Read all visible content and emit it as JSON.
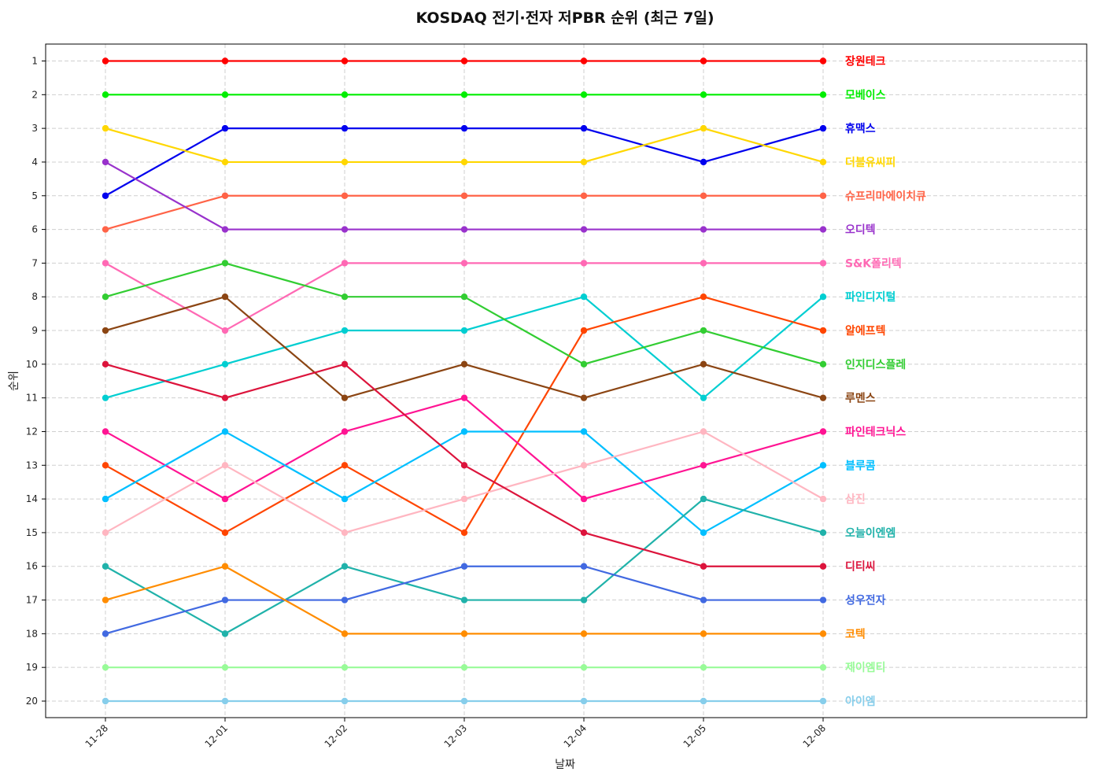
{
  "chart_data": {
    "type": "line",
    "title": "KOSDAQ 전기·전자 저PBR 순위 (최근 7일)",
    "xlabel": "날짜",
    "ylabel": "순위",
    "x": [
      "11-28",
      "12-01",
      "12-02",
      "12-03",
      "12-04",
      "12-05",
      "12-08"
    ],
    "y_ticks": [
      1,
      2,
      3,
      4,
      5,
      6,
      7,
      8,
      9,
      10,
      11,
      12,
      13,
      14,
      15,
      16,
      17,
      18,
      19,
      20
    ],
    "ylim": [
      20.5,
      0.5
    ],
    "y_inverted": true,
    "grid": true,
    "legend": "series names labeled at right end of each line",
    "series": [
      {
        "name": "장원테크",
        "color": "#ff0000",
        "values": [
          1,
          1,
          1,
          1,
          1,
          1,
          1
        ]
      },
      {
        "name": "모베이스",
        "color": "#00ee00",
        "values": [
          2,
          2,
          2,
          2,
          2,
          2,
          2
        ]
      },
      {
        "name": "휴맥스",
        "color": "#0000ee",
        "values": [
          5,
          3,
          3,
          3,
          3,
          4,
          3
        ]
      },
      {
        "name": "더블유씨피",
        "color": "#ffd700",
        "values": [
          3,
          4,
          4,
          4,
          4,
          3,
          4
        ]
      },
      {
        "name": "슈프리마에이치큐",
        "color": "#ff6347",
        "values": [
          6,
          5,
          5,
          5,
          5,
          5,
          5
        ]
      },
      {
        "name": "오디텍",
        "color": "#9932cc",
        "values": [
          4,
          6,
          6,
          6,
          6,
          6,
          6
        ]
      },
      {
        "name": "S&K폴리텍",
        "color": "#ff69b4",
        "values": [
          7,
          9,
          7,
          7,
          7,
          7,
          7
        ]
      },
      {
        "name": "파인디지털",
        "color": "#00ced1",
        "values": [
          11,
          10,
          9,
          9,
          8,
          11,
          8
        ]
      },
      {
        "name": "알에프텍",
        "color": "#ff4500",
        "values": [
          13,
          15,
          13,
          15,
          9,
          8,
          9
        ]
      },
      {
        "name": "인지디스플레",
        "color": "#32cd32",
        "values": [
          8,
          7,
          8,
          8,
          10,
          9,
          10
        ]
      },
      {
        "name": "루멘스",
        "color": "#8b4513",
        "values": [
          9,
          8,
          11,
          10,
          11,
          10,
          11
        ]
      },
      {
        "name": "파인테크닉스",
        "color": "#ff1493",
        "values": [
          12,
          14,
          12,
          11,
          14,
          13,
          12
        ]
      },
      {
        "name": "블루콤",
        "color": "#00bfff",
        "values": [
          14,
          12,
          14,
          12,
          12,
          15,
          13
        ]
      },
      {
        "name": "삼진",
        "color": "#ffb6c1",
        "values": [
          15,
          13,
          15,
          14,
          13,
          12,
          14
        ]
      },
      {
        "name": "오늘이엔엠",
        "color": "#20b2aa",
        "values": [
          16,
          18,
          16,
          17,
          17,
          14,
          15
        ]
      },
      {
        "name": "디티씨",
        "color": "#dc143c",
        "values": [
          10,
          11,
          10,
          13,
          15,
          16,
          16
        ]
      },
      {
        "name": "성우전자",
        "color": "#4169e1",
        "values": [
          18,
          17,
          17,
          16,
          16,
          17,
          17
        ]
      },
      {
        "name": "코텍",
        "color": "#ff8c00",
        "values": [
          17,
          16,
          18,
          18,
          18,
          18,
          18
        ]
      },
      {
        "name": "제이엠티",
        "color": "#98fb98",
        "values": [
          19,
          19,
          19,
          19,
          19,
          19,
          19
        ]
      },
      {
        "name": "아이엠",
        "color": "#87ceeb",
        "values": [
          20,
          20,
          20,
          20,
          20,
          20,
          20
        ]
      }
    ]
  }
}
